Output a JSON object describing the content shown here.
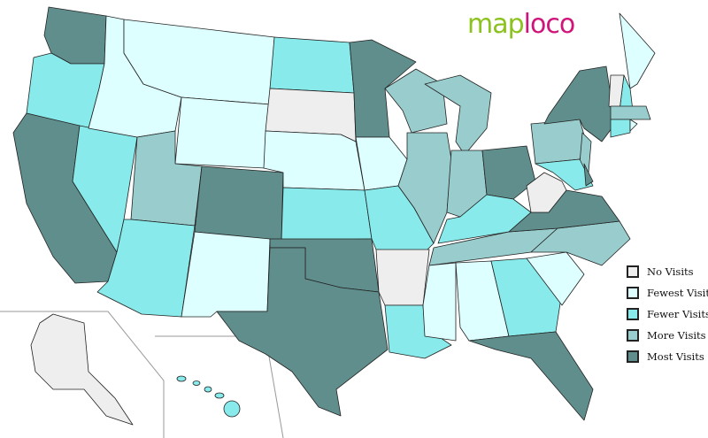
{
  "logo": {
    "part1": "map",
    "part2": "loco"
  },
  "colors": {
    "no": "#eeeeee",
    "fewest": "#ddffff",
    "fewer": "#88eaea",
    "more": "#99cccc",
    "most": "#5f8e8c"
  },
  "legend": [
    {
      "key": "no",
      "label": "No Visits"
    },
    {
      "key": "fewest",
      "label": "Fewest Visits"
    },
    {
      "key": "fewer",
      "label": "Fewer Visits"
    },
    {
      "key": "more",
      "label": "More Visits"
    },
    {
      "key": "most",
      "label": "Most Visits"
    }
  ],
  "states": {
    "WA": "most",
    "OR": "fewer",
    "CA": "most",
    "NV": "fewer",
    "ID": "fewest",
    "MT": "fewest",
    "WY": "fewest",
    "UT": "more",
    "AZ": "fewer",
    "CO": "most",
    "NM": "fewest",
    "ND": "fewer",
    "SD": "no",
    "NE": "fewest",
    "KS": "fewer",
    "OK": "most",
    "TX": "most",
    "MN": "most",
    "IA": "fewest",
    "MO": "fewer",
    "AR": "no",
    "LA": "fewer",
    "WI": "more",
    "IL": "more",
    "MI": "more",
    "IN": "more",
    "OH": "most",
    "KY": "fewer",
    "TN": "more",
    "MS": "fewest",
    "AL": "fewest",
    "GA": "fewer",
    "FL": "most",
    "SC": "fewest",
    "NC": "more",
    "VA": "most",
    "WV": "no",
    "PA": "more",
    "NY": "most",
    "NJ": "more",
    "MD": "fewer",
    "DE": "most",
    "ME": "fewest",
    "NH": "fewer",
    "VT": "no",
    "MA": "more",
    "CT": "fewer",
    "RI": "fewest",
    "AK": "no",
    "HI": "fewer"
  }
}
